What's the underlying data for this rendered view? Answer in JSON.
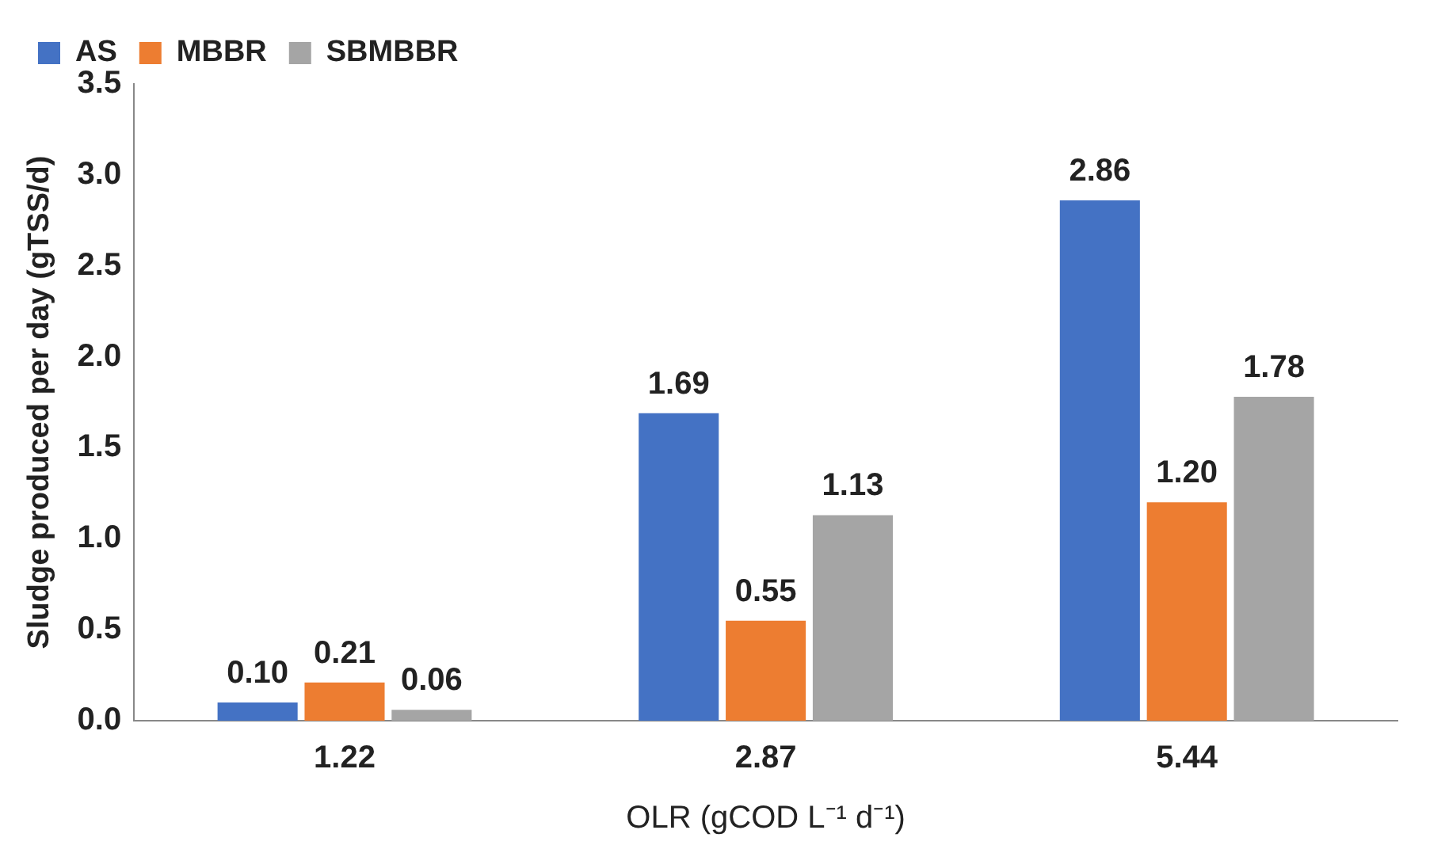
{
  "chart_data": {
    "type": "bar",
    "xlabel": "OLR (gCOD L⁻¹ d⁻¹)",
    "ylabel": "Sludge produced per day (gTSS/d)",
    "categories": [
      "1.22",
      "2.87",
      "5.44"
    ],
    "series": [
      {
        "name": "AS",
        "color": "#4472c4",
        "values": [
          0.1,
          1.69,
          2.86
        ],
        "value_labels": [
          "0.10",
          "1.69",
          "2.86"
        ]
      },
      {
        "name": "MBBR",
        "color": "#ed7d31",
        "values": [
          0.21,
          0.55,
          1.2
        ],
        "value_labels": [
          "0.21",
          "0.55",
          "1.20"
        ]
      },
      {
        "name": "SBMBBR",
        "color": "#a5a5a5",
        "values": [
          0.06,
          1.13,
          1.78
        ],
        "value_labels": [
          "0.06",
          "1.13",
          "1.78"
        ]
      }
    ],
    "ylim": [
      0,
      3.5
    ],
    "yticks": [
      {
        "value": 0,
        "label": "0.0"
      },
      {
        "value": 0.5,
        "label": "0.5"
      },
      {
        "value": 1,
        "label": "1.0"
      },
      {
        "value": 1.5,
        "label": "1.5"
      },
      {
        "value": 2,
        "label": "2.0"
      },
      {
        "value": 2.5,
        "label": "2.5"
      },
      {
        "value": 3,
        "label": "3.0"
      },
      {
        "value": 3.5,
        "label": "3.5"
      }
    ],
    "grid": false,
    "legend": "top left"
  }
}
